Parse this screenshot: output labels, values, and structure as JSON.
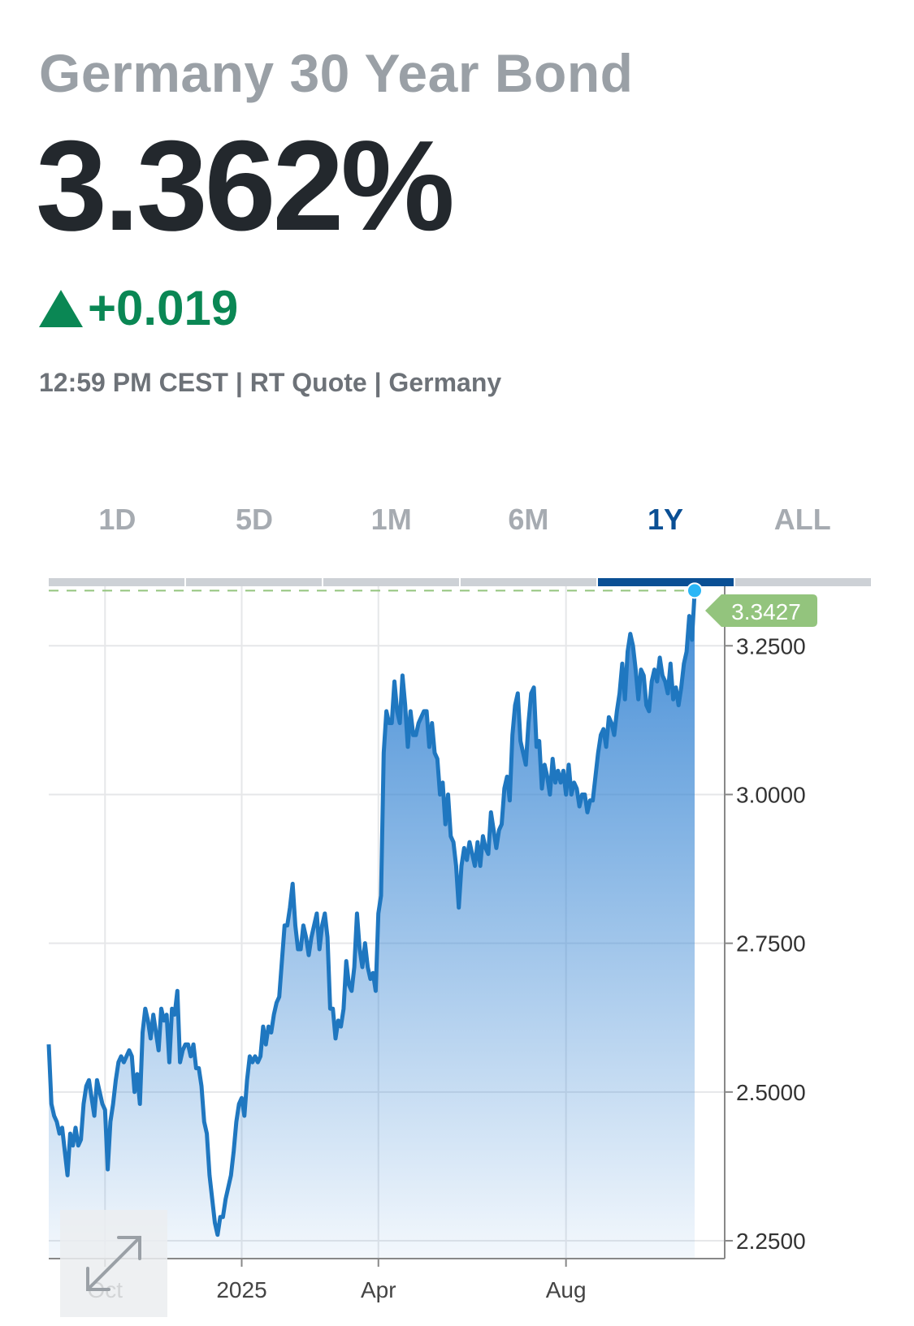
{
  "header": {
    "title": "Germany 30 Year Bond",
    "price": "3.362%",
    "change": "+0.019",
    "change_icon": "triangle-up-icon",
    "meta": "12:59 PM CEST | RT Quote | Germany"
  },
  "tabs": [
    {
      "label": "1D"
    },
    {
      "label": "5D"
    },
    {
      "label": "1M"
    },
    {
      "label": "6M"
    },
    {
      "label": "1Y",
      "active": true
    },
    {
      "label": "ALL"
    }
  ],
  "colors": {
    "up": "#0a8754",
    "line": "#1f77c0",
    "active_tab": "#0a4f94",
    "last_label_bg": "#93c47d"
  },
  "expand_button": {
    "icon": "expand-arrows-icon"
  },
  "chart_data": {
    "type": "area",
    "x_tick_labels": [
      "Oct",
      "2025",
      "Apr",
      "Aug"
    ],
    "y_tick_labels": [
      "3.2500",
      "3.0000",
      "2.7500",
      "2.5000",
      "2.2500"
    ],
    "y_ticks": [
      3.25,
      3.0,
      2.75,
      2.5,
      2.25
    ],
    "ylim": [
      2.22,
      3.35
    ],
    "last_value": 3.3427,
    "last_value_label": "3.3427",
    "grid": true,
    "values": [
      2.58,
      2.48,
      2.46,
      2.45,
      2.43,
      2.44,
      2.4,
      2.36,
      2.43,
      2.41,
      2.44,
      2.41,
      2.42,
      2.48,
      2.51,
      2.52,
      2.49,
      2.46,
      2.52,
      2.5,
      2.48,
      2.47,
      2.37,
      2.45,
      2.48,
      2.52,
      2.55,
      2.56,
      2.55,
      2.56,
      2.57,
      2.56,
      2.5,
      2.53,
      2.48,
      2.6,
      2.64,
      2.62,
      2.59,
      2.63,
      2.6,
      2.57,
      2.64,
      2.62,
      2.63,
      2.55,
      2.64,
      2.63,
      2.67,
      2.55,
      2.57,
      2.58,
      2.58,
      2.56,
      2.58,
      2.54,
      2.54,
      2.51,
      2.45,
      2.43,
      2.36,
      2.32,
      2.28,
      2.26,
      2.29,
      2.29,
      2.32,
      2.34,
      2.36,
      2.4,
      2.45,
      2.48,
      2.49,
      2.46,
      2.52,
      2.56,
      2.55,
      2.56,
      2.55,
      2.56,
      2.61,
      2.58,
      2.61,
      2.6,
      2.63,
      2.65,
      2.66,
      2.72,
      2.78,
      2.78,
      2.81,
      2.85,
      2.78,
      2.74,
      2.74,
      2.78,
      2.76,
      2.73,
      2.76,
      2.78,
      2.8,
      2.74,
      2.78,
      2.8,
      2.76,
      2.64,
      2.64,
      2.59,
      2.62,
      2.61,
      2.64,
      2.72,
      2.68,
      2.67,
      2.71,
      2.8,
      2.74,
      2.71,
      2.75,
      2.71,
      2.69,
      2.7,
      2.67,
      2.8,
      2.83,
      3.07,
      3.14,
      3.12,
      3.12,
      3.19,
      3.14,
      3.12,
      3.2,
      3.15,
      3.08,
      3.14,
      3.1,
      3.1,
      3.12,
      3.13,
      3.14,
      3.14,
      3.08,
      3.12,
      3.07,
      3.06,
      3.0,
      3.02,
      2.95,
      3.0,
      2.93,
      2.92,
      2.88,
      2.81,
      2.88,
      2.91,
      2.89,
      2.92,
      2.9,
      2.88,
      2.92,
      2.88,
      2.93,
      2.91,
      2.9,
      2.97,
      2.94,
      2.91,
      2.94,
      2.95,
      3.01,
      3.03,
      2.99,
      3.1,
      3.15,
      3.17,
      3.09,
      3.07,
      3.05,
      3.12,
      3.17,
      3.18,
      3.08,
      3.09,
      3.01,
      3.05,
      3.03,
      3.0,
      3.06,
      3.02,
      3.04,
      3.02,
      3.04,
      3.0,
      3.05,
      3.0,
      3.02,
      3.01,
      2.98,
      3.0,
      3.0,
      2.97,
      2.99,
      2.99,
      3.03,
      3.07,
      3.1,
      3.11,
      3.08,
      3.13,
      3.12,
      3.1,
      3.14,
      3.17,
      3.22,
      3.16,
      3.24,
      3.27,
      3.25,
      3.21,
      3.16,
      3.21,
      3.2,
      3.15,
      3.14,
      3.19,
      3.21,
      3.19,
      3.23,
      3.2,
      3.19,
      3.17,
      3.22,
      3.16,
      3.18,
      3.15,
      3.18,
      3.22,
      3.24,
      3.3,
      3.26,
      3.34
    ]
  }
}
